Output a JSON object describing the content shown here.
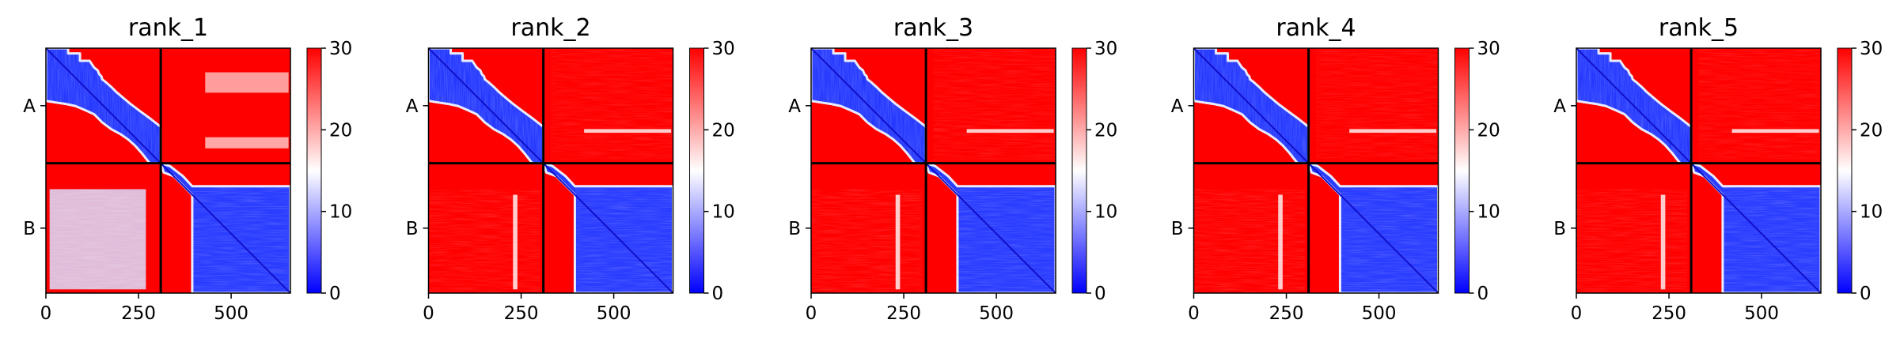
{
  "chart_data": {
    "type": "heatmap",
    "colormap": {
      "low": "#0000ff",
      "mid": "#ffffff",
      "high": "#ff0000"
    },
    "value_range": [
      0,
      30
    ],
    "colorbar_ticks": [
      "0",
      "10",
      "20",
      "30"
    ],
    "x_range": [
      0,
      660
    ],
    "x_ticks": [
      {
        "value": 0,
        "label": "0"
      },
      {
        "value": 250,
        "label": "250"
      },
      {
        "value": 500,
        "label": "500"
      }
    ],
    "chain_boundary": 310,
    "chains": [
      {
        "label": "A",
        "center": 155
      },
      {
        "label": "B",
        "center": 485
      }
    ],
    "panels": [
      {
        "title": "rank_1"
      },
      {
        "title": "rank_2"
      },
      {
        "title": "rank_3"
      },
      {
        "title": "rank_4"
      },
      {
        "title": "rank_5"
      }
    ]
  }
}
